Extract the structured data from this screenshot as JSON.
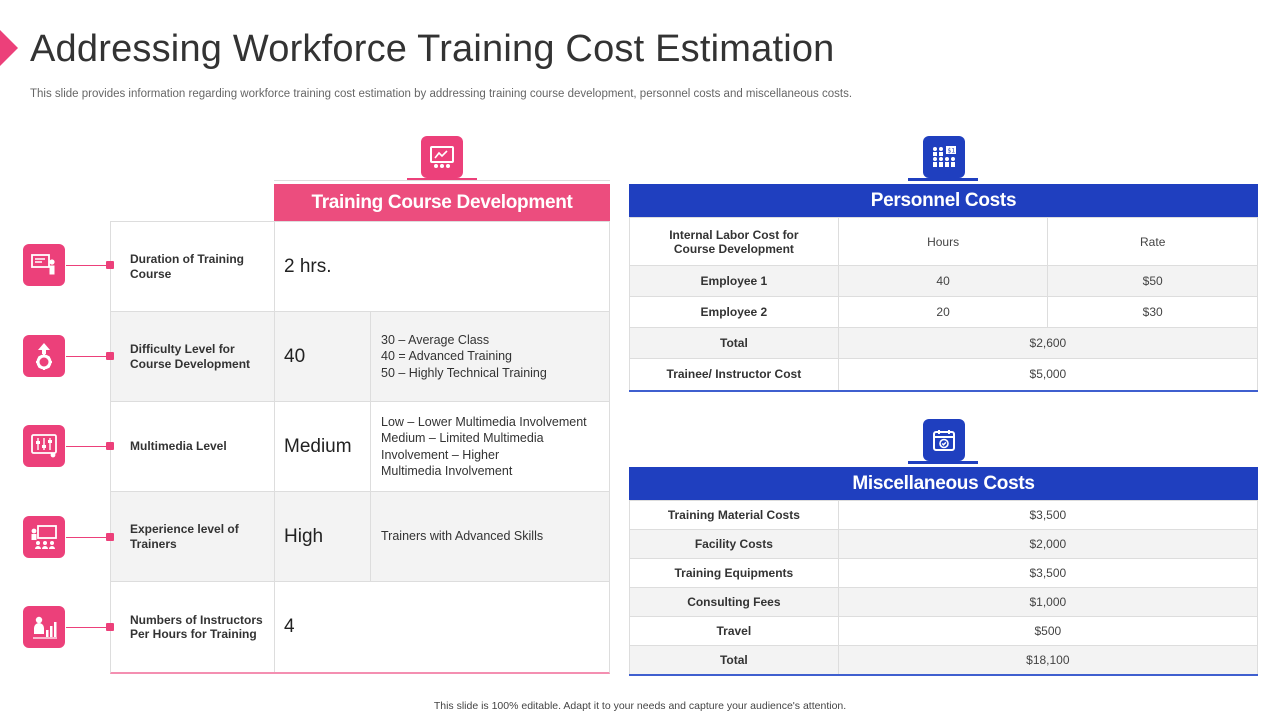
{
  "title": "Addressing  Workforce Training Cost Estimation",
  "subtitle": "This slide provides information regarding workforce training cost estimation by addressing training course development, personnel costs and miscellaneous costs.",
  "footer": "This slide is 100% editable.  Adapt it to your needs and capture your audience's attention.",
  "training": {
    "header": "Training Course Development",
    "icon": "presentation-board-icon",
    "rows": [
      {
        "icon": "presenter-board-icon",
        "label": "Duration  of Training Course",
        "value": "2 hrs.",
        "note": ""
      },
      {
        "icon": "gear-arrow-icon",
        "label": "Difficulty  Level for Course Development",
        "value": "40",
        "note": "30 – Average  Class\n40 = Advanced Training\n50 – Highly Technical Training"
      },
      {
        "icon": "sliders-monitor-icon",
        "label": "Multimedia Level",
        "value": "Medium",
        "note": "Low – Lower Multimedia Involvement\nMedium – Limited Multimedia\nInvolvement  – Higher\nMultimedia Involvement"
      },
      {
        "icon": "classroom-trainer-icon",
        "label": "Experience level of Trainers",
        "value": "High",
        "note": "Trainers  with  Advanced  Skills"
      },
      {
        "icon": "instructor-chart-icon",
        "label": "Numbers of Instructors Per Hours for Training",
        "value": "4",
        "note": ""
      }
    ]
  },
  "personnel": {
    "header": "Personnel Costs",
    "icon": "team-cost-icon",
    "columns": [
      "Internal Labor Cost for Course Development",
      "Hours",
      "Rate"
    ],
    "rows": [
      [
        "Employee  1",
        "40",
        "$50"
      ],
      [
        "Employee  2",
        "20",
        "$30"
      ]
    ],
    "total_label": "Total",
    "total_value": "$2,600",
    "trainee_label": "Trainee/ Instructor Cost",
    "trainee_value": "$5,000"
  },
  "misc": {
    "header": "Miscellaneous Costs",
    "icon": "calendar-check-icon",
    "rows": [
      [
        "Training  Material Costs",
        "$3,500"
      ],
      [
        "Facility  Costs",
        "$2,000"
      ],
      [
        "Training  Equipments",
        "$3,500"
      ],
      [
        "Consulting  Fees",
        "$1,000"
      ],
      [
        "Travel",
        "$500"
      ],
      [
        "Total",
        "$18,100"
      ]
    ]
  },
  "colors": {
    "pink": "#ec407a",
    "blue": "#1f3fbf"
  }
}
